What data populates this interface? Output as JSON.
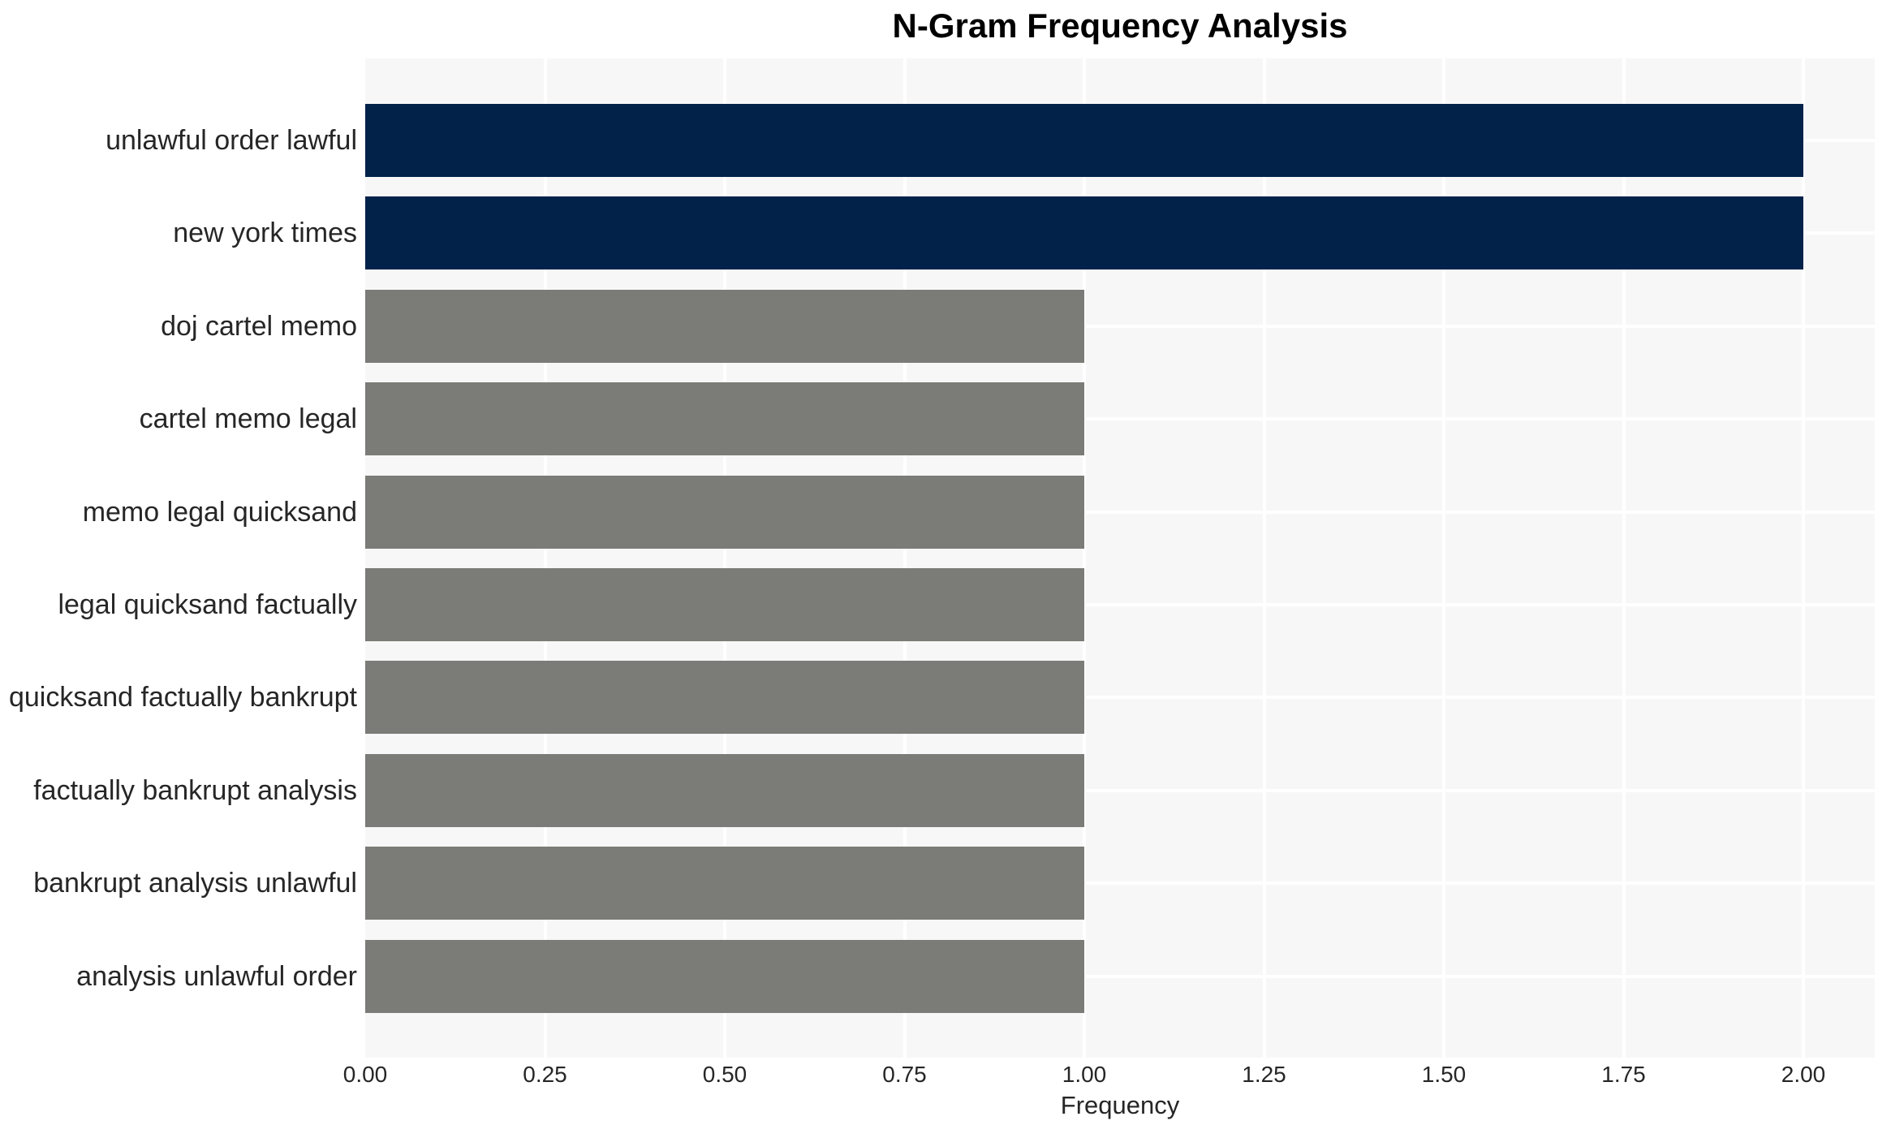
{
  "chart_data": {
    "type": "bar",
    "orientation": "horizontal",
    "title": "N-Gram Frequency Analysis",
    "xlabel": "Frequency",
    "ylabel": "",
    "categories": [
      "unlawful order lawful",
      "new york times",
      "doj cartel memo",
      "cartel memo legal",
      "memo legal quicksand",
      "legal quicksand factually",
      "quicksand factually bankrupt",
      "factually bankrupt analysis",
      "bankrupt analysis unlawful",
      "analysis unlawful order"
    ],
    "values": [
      2,
      2,
      1,
      1,
      1,
      1,
      1,
      1,
      1,
      1
    ],
    "bar_colors": [
      "#02224a",
      "#02224a",
      "#7b7b77",
      "#7b7b77",
      "#7b7b77",
      "#7b7b77",
      "#7b7b77",
      "#7b7b77",
      "#7b7b77",
      "#7b7b77"
    ],
    "xlim": [
      0,
      2.1
    ],
    "xticks": [
      0,
      0.25,
      0.5,
      0.75,
      1.0,
      1.25,
      1.5,
      1.75,
      2.0
    ],
    "xtick_labels": [
      "0.00",
      "0.25",
      "0.50",
      "0.75",
      "1.00",
      "1.25",
      "1.50",
      "1.75",
      "2.00"
    ],
    "grid": true,
    "legend": false,
    "colors": {
      "highlight_bar": "#02224a",
      "default_bar": "#7b7b77",
      "plot_background": "#f7f7f7",
      "grid_line": "#ffffff",
      "text": "#262626",
      "title_text": "#000000"
    }
  }
}
